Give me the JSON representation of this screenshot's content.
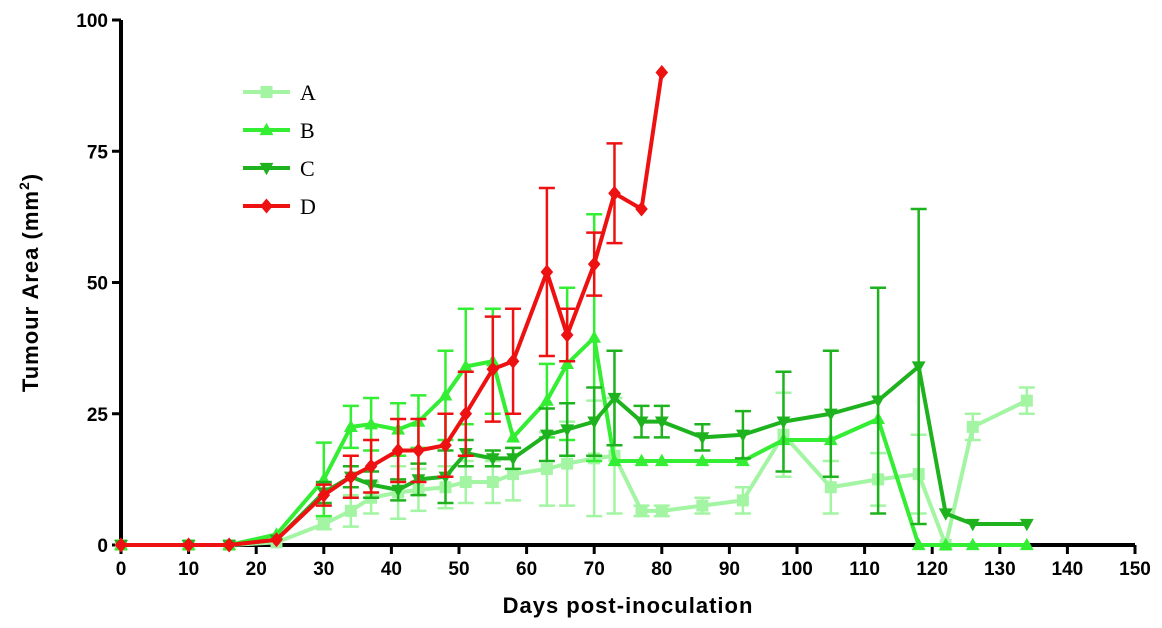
{
  "chart_data": {
    "type": "line",
    "xlabel": "Days post-inoculation",
    "ylabel_main": "Tumour Area (mm",
    "ylabel_sup": "2",
    "ylabel_close": ")",
    "xlim": [
      0,
      150
    ],
    "ylim": [
      0,
      100
    ],
    "x_ticks": [
      0,
      10,
      20,
      30,
      40,
      50,
      60,
      70,
      80,
      90,
      100,
      110,
      120,
      130,
      140,
      150
    ],
    "y_ticks": [
      0,
      25,
      50,
      75,
      100
    ],
    "legend_position": "top-left",
    "grid": false,
    "series": [
      {
        "name": "A",
        "color": "#a3f5a3",
        "marker": "square",
        "points": [
          {
            "x": 0,
            "y": 0
          },
          {
            "x": 10,
            "y": 0
          },
          {
            "x": 16,
            "y": 0
          },
          {
            "x": 23,
            "y": 0.5
          },
          {
            "x": 30,
            "y": 4,
            "err": 1
          },
          {
            "x": 34,
            "y": 6.5,
            "err": 3
          },
          {
            "x": 37,
            "y": 9,
            "err": 3
          },
          {
            "x": 41,
            "y": 10,
            "err": 5
          },
          {
            "x": 44,
            "y": 10.5,
            "err": 4
          },
          {
            "x": 48,
            "y": 11,
            "err": 4
          },
          {
            "x": 51,
            "y": 12,
            "err": 4
          },
          {
            "x": 55,
            "y": 12,
            "err": 4
          },
          {
            "x": 58,
            "y": 13.5,
            "err": 5
          },
          {
            "x": 63,
            "y": 14.5,
            "err": 7
          },
          {
            "x": 66,
            "y": 15.5,
            "err": 8
          },
          {
            "x": 70,
            "y": 16.5,
            "err": 11
          },
          {
            "x": 73,
            "y": 17,
            "err": 11
          },
          {
            "x": 77,
            "y": 6.5,
            "err": 1
          },
          {
            "x": 80,
            "y": 6.5,
            "err": 1
          },
          {
            "x": 86,
            "y": 7.5,
            "err": 1.5
          },
          {
            "x": 92,
            "y": 8.5,
            "err": 2.5
          },
          {
            "x": 98,
            "y": 21,
            "err": 8
          },
          {
            "x": 105,
            "y": 11,
            "err": 5
          },
          {
            "x": 112,
            "y": 12.5,
            "err": 5
          },
          {
            "x": 118,
            "y": 13.5,
            "err": 7.5
          },
          {
            "x": 122,
            "y": 0
          },
          {
            "x": 126,
            "y": 22.5,
            "err": 2.5
          },
          {
            "x": 134,
            "y": 27.5,
            "err": 2.5
          }
        ]
      },
      {
        "name": "B",
        "color": "#33ee33",
        "marker": "triangle-up",
        "points": [
          {
            "x": 0,
            "y": 0
          },
          {
            "x": 10,
            "y": 0
          },
          {
            "x": 16,
            "y": 0
          },
          {
            "x": 23,
            "y": 2
          },
          {
            "x": 30,
            "y": 12.5,
            "err": 7
          },
          {
            "x": 34,
            "y": 22.5,
            "err": 4
          },
          {
            "x": 37,
            "y": 23,
            "err": 5
          },
          {
            "x": 41,
            "y": 22,
            "err": 5
          },
          {
            "x": 44,
            "y": 23.5,
            "err": 5
          },
          {
            "x": 48,
            "y": 28.5,
            "err": 8.5
          },
          {
            "x": 51,
            "y": 34,
            "err": 11
          },
          {
            "x": 55,
            "y": 35,
            "err": 10
          },
          {
            "x": 58,
            "y": 20.5
          },
          {
            "x": 63,
            "y": 27.5,
            "err": 7
          },
          {
            "x": 66,
            "y": 34.5,
            "err": 14.5
          },
          {
            "x": 70,
            "y": 39.5,
            "err": 23.5
          },
          {
            "x": 73,
            "y": 16
          },
          {
            "x": 77,
            "y": 16
          },
          {
            "x": 80,
            "y": 16
          },
          {
            "x": 86,
            "y": 16
          },
          {
            "x": 92,
            "y": 16
          },
          {
            "x": 98,
            "y": 20
          },
          {
            "x": 105,
            "y": 20
          },
          {
            "x": 112,
            "y": 24
          },
          {
            "x": 118,
            "y": 0
          },
          {
            "x": 122,
            "y": 0
          },
          {
            "x": 126,
            "y": 0
          },
          {
            "x": 134,
            "y": 0
          }
        ]
      },
      {
        "name": "C",
        "color": "#1fb21f",
        "marker": "triangle-down",
        "points": [
          {
            "x": 0,
            "y": 0
          },
          {
            "x": 10,
            "y": 0
          },
          {
            "x": 16,
            "y": 0
          },
          {
            "x": 23,
            "y": 1
          },
          {
            "x": 30,
            "y": 10,
            "err": 2
          },
          {
            "x": 34,
            "y": 13,
            "err": 2
          },
          {
            "x": 37,
            "y": 11.5,
            "err": 2.5
          },
          {
            "x": 41,
            "y": 10.5,
            "err": 2
          },
          {
            "x": 44,
            "y": 12.5,
            "err": 3
          },
          {
            "x": 48,
            "y": 13,
            "err": 5
          },
          {
            "x": 51,
            "y": 17.5,
            "err": 2.5
          },
          {
            "x": 55,
            "y": 16.5,
            "err": 1.5
          },
          {
            "x": 58,
            "y": 16.5,
            "err": 2
          },
          {
            "x": 63,
            "y": 21,
            "err": 5
          },
          {
            "x": 66,
            "y": 22,
            "err": 5
          },
          {
            "x": 70,
            "y": 23.5,
            "err": 6.5
          },
          {
            "x": 73,
            "y": 28,
            "err": 9
          },
          {
            "x": 77,
            "y": 23.5,
            "err": 3
          },
          {
            "x": 80,
            "y": 23.5,
            "err": 3
          },
          {
            "x": 86,
            "y": 20.5,
            "err": 2.5
          },
          {
            "x": 92,
            "y": 21,
            "err": 4.5
          },
          {
            "x": 98,
            "y": 23.5,
            "err": 9.5
          },
          {
            "x": 105,
            "y": 25,
            "err": 12
          },
          {
            "x": 112,
            "y": 27.5,
            "err": 21.5
          },
          {
            "x": 118,
            "y": 34,
            "err": 30
          },
          {
            "x": 122,
            "y": 6
          },
          {
            "x": 126,
            "y": 4
          },
          {
            "x": 134,
            "y": 4
          }
        ]
      },
      {
        "name": "D",
        "color": "#ee1111",
        "marker": "diamond",
        "points": [
          {
            "x": 0,
            "y": 0
          },
          {
            "x": 10,
            "y": 0
          },
          {
            "x": 16,
            "y": 0
          },
          {
            "x": 23,
            "y": 1
          },
          {
            "x": 30,
            "y": 9.5,
            "err": 2
          },
          {
            "x": 34,
            "y": 13,
            "err": 4
          },
          {
            "x": 37,
            "y": 15,
            "err": 5
          },
          {
            "x": 41,
            "y": 18,
            "err": 6
          },
          {
            "x": 44,
            "y": 18,
            "err": 6
          },
          {
            "x": 48,
            "y": 19,
            "err": 6
          },
          {
            "x": 51,
            "y": 25,
            "err": 8
          },
          {
            "x": 55,
            "y": 33.5,
            "err": 10
          },
          {
            "x": 58,
            "y": 35,
            "err": 10
          },
          {
            "x": 63,
            "y": 52,
            "err": 16
          },
          {
            "x": 66,
            "y": 40,
            "err": 5
          },
          {
            "x": 70,
            "y": 53.5,
            "err": 6
          },
          {
            "x": 73,
            "y": 67,
            "err": 9.5
          },
          {
            "x": 77,
            "y": 64
          },
          {
            "x": 80,
            "y": 90
          }
        ]
      }
    ]
  }
}
